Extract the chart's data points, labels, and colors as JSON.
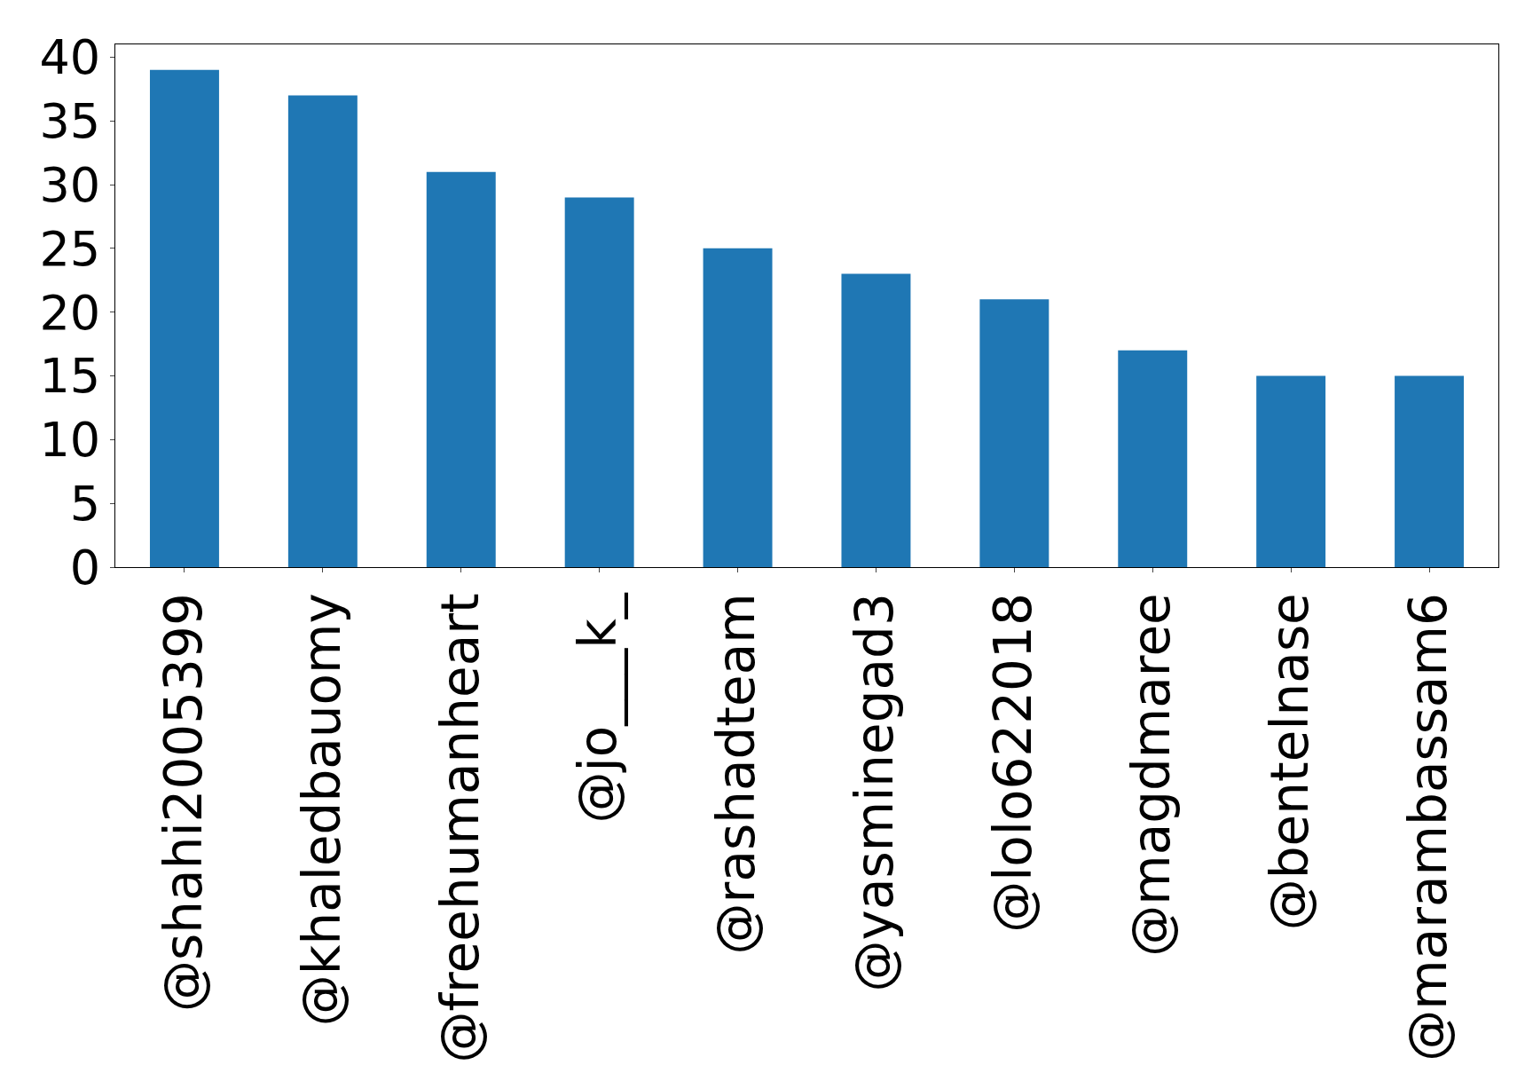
{
  "chart_data": {
    "type": "bar",
    "categories": [
      "@shahi2005399",
      "@khaledbauomy",
      "@freehumanheart",
      "@jo___k_",
      "@rashadteam",
      "@yasminegad3",
      "@lolo622018",
      "@magdmaree",
      "@bentelnase",
      "@marambassam6"
    ],
    "values": [
      39,
      37,
      31,
      29,
      25,
      23,
      21,
      17,
      15,
      15
    ],
    "color": "#1f77b4",
    "ylim": [
      0,
      41
    ],
    "yticks": [
      0,
      5,
      10,
      15,
      20,
      25,
      30,
      35,
      40
    ],
    "legend": false
  }
}
